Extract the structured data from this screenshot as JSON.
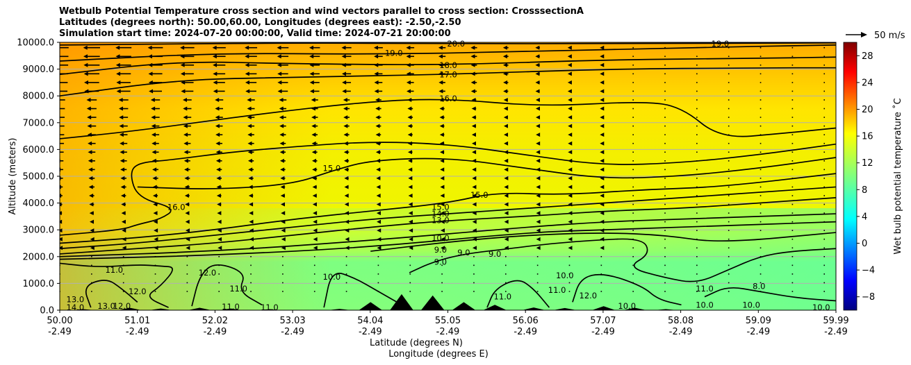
{
  "chart_data": {
    "type": "heatmap",
    "title_lines": [
      "Wetbulb Potential Temperature cross section and wind vectors parallel to cross section: CrosssectionA",
      "Latitudes (degrees north): 50.00,60.00, Longitudes (degrees east): -2.50,-2.50",
      "Simulation start time: 2024-07-20 00:00:00, Valid time: 2024-07-21 20:00:00"
    ],
    "xlabel_lat": "Latitude (degrees N)",
    "xlabel_lon": "Longitude (degrees E)",
    "ylabel": "Altitude (meters)",
    "x_ticks": [
      {
        "lat": "50.00",
        "lon": "-2.49"
      },
      {
        "lat": "51.01",
        "lon": "-2.49"
      },
      {
        "lat": "52.02",
        "lon": "-2.49"
      },
      {
        "lat": "53.03",
        "lon": "-2.49"
      },
      {
        "lat": "54.04",
        "lon": "-2.49"
      },
      {
        "lat": "55.05",
        "lon": "-2.49"
      },
      {
        "lat": "56.06",
        "lon": "-2.49"
      },
      {
        "lat": "57.07",
        "lon": "-2.49"
      },
      {
        "lat": "58.08",
        "lon": "-2.49"
      },
      {
        "lat": "59.09",
        "lon": "-2.49"
      },
      {
        "lat": "59.99",
        "lon": "-2.49"
      }
    ],
    "x_range": [
      50.0,
      59.99
    ],
    "y_ticks": [
      "0.0",
      "1000.0",
      "2000.0",
      "3000.0",
      "4000.0",
      "5000.0",
      "6000.0",
      "7000.0",
      "8000.0",
      "9000.0",
      "10000.0"
    ],
    "ylim": [
      0,
      10000
    ],
    "grid": "horizontal lines",
    "colorbar": {
      "label": "Wet bulb potential temperature $^\\circ$C",
      "label_text": "Wet bulb potential temperature ˚C",
      "ticks": [
        "−8",
        "−4",
        "0",
        "4",
        "8",
        "12",
        "16",
        "20",
        "24",
        "28"
      ],
      "range": [
        -10,
        30
      ],
      "colormap": "jet"
    },
    "wind_key": {
      "label": "50 m/s"
    },
    "contour_labels": [
      {
        "text": "20.0",
        "lat": 55.1,
        "z": 9950
      },
      {
        "text": "19.0",
        "lat": 54.3,
        "z": 9600
      },
      {
        "text": "19.0",
        "lat": 58.5,
        "z": 9950
      },
      {
        "text": "18.0",
        "lat": 55.0,
        "z": 9150
      },
      {
        "text": "17.0",
        "lat": 55.0,
        "z": 8800
      },
      {
        "text": "16.0",
        "lat": 55.0,
        "z": 7900
      },
      {
        "text": "15.0",
        "lat": 53.5,
        "z": 5300
      },
      {
        "text": "16.0",
        "lat": 51.5,
        "z": 3850
      },
      {
        "text": "15.0",
        "lat": 55.4,
        "z": 4300
      },
      {
        "text": "15.0",
        "lat": 54.9,
        "z": 3850
      },
      {
        "text": "14.0",
        "lat": 54.9,
        "z": 3600
      },
      {
        "text": "13.0",
        "lat": 54.9,
        "z": 3350
      },
      {
        "text": "10.0",
        "lat": 54.9,
        "z": 2700
      },
      {
        "text": "9.0",
        "lat": 54.9,
        "z": 2250
      },
      {
        "text": "9.0",
        "lat": 55.2,
        "z": 2150
      },
      {
        "text": "9.0",
        "lat": 54.9,
        "z": 1800
      },
      {
        "text": "9.0",
        "lat": 55.6,
        "z": 2100
      },
      {
        "text": "11.0",
        "lat": 50.7,
        "z": 1500
      },
      {
        "text": "12.0",
        "lat": 51.9,
        "z": 1400
      },
      {
        "text": "12.0",
        "lat": 51.0,
        "z": 700
      },
      {
        "text": "11.0",
        "lat": 52.3,
        "z": 800
      },
      {
        "text": "10.0",
        "lat": 53.5,
        "z": 1250
      },
      {
        "text": "11.0",
        "lat": 56.4,
        "z": 750
      },
      {
        "text": "10.0",
        "lat": 56.5,
        "z": 1300
      },
      {
        "text": "12.0",
        "lat": 56.8,
        "z": 550
      },
      {
        "text": "11.0",
        "lat": 58.3,
        "z": 800
      },
      {
        "text": "8.0",
        "lat": 59.0,
        "z": 900
      },
      {
        "text": "13.0",
        "lat": 50.2,
        "z": 400
      },
      {
        "text": "14.0",
        "lat": 50.2,
        "z": 100
      },
      {
        "text": "13.0",
        "lat": 50.6,
        "z": 150
      },
      {
        "text": "12.0",
        "lat": 50.8,
        "z": 150
      },
      {
        "text": "11.0",
        "lat": 52.2,
        "z": 130
      },
      {
        "text": "11.0",
        "lat": 52.7,
        "z": 100
      },
      {
        "text": "11.0",
        "lat": 55.7,
        "z": 500
      },
      {
        "text": "10.0",
        "lat": 57.3,
        "z": 150
      },
      {
        "text": "10.0",
        "lat": 58.3,
        "z": 200
      },
      {
        "text": "10.0",
        "lat": 58.9,
        "z": 200
      },
      {
        "text": "10.0",
        "lat": 59.8,
        "z": 100
      }
    ],
    "contours": [
      {
        "level": 20.0,
        "points": [
          [
            50.0,
            9900
          ],
          [
            53.0,
            9980
          ],
          [
            55.0,
            9950
          ],
          [
            57.0,
            9950
          ],
          [
            59.99,
            9980
          ]
        ]
      },
      {
        "level": 19.0,
        "points": [
          [
            50.0,
            9300
          ],
          [
            52.0,
            9600
          ],
          [
            54.0,
            9550
          ],
          [
            56.0,
            9650
          ],
          [
            58.0,
            9800
          ],
          [
            59.99,
            9900
          ]
        ]
      },
      {
        "level": 18.0,
        "points": [
          [
            50.0,
            8800
          ],
          [
            51.5,
            9300
          ],
          [
            53.0,
            9200
          ],
          [
            55.0,
            9150
          ],
          [
            57.0,
            9350
          ],
          [
            59.0,
            9400
          ],
          [
            59.99,
            9450
          ]
        ]
      },
      {
        "level": 17.0,
        "points": [
          [
            50.0,
            8000
          ],
          [
            51.5,
            8600
          ],
          [
            53.0,
            8700
          ],
          [
            55.0,
            8800
          ],
          [
            57.0,
            9000
          ],
          [
            59.0,
            9050
          ],
          [
            59.99,
            9050
          ]
        ]
      },
      {
        "level": 16.0,
        "points": [
          [
            50.0,
            6400
          ],
          [
            51.0,
            6700
          ],
          [
            52.5,
            7300
          ],
          [
            54.0,
            7800
          ],
          [
            55.0,
            7900
          ],
          [
            56.2,
            7600
          ],
          [
            57.5,
            7800
          ],
          [
            58.0,
            7600
          ],
          [
            58.5,
            6400
          ],
          [
            59.3,
            6600
          ],
          [
            59.99,
            6800
          ]
        ]
      },
      {
        "level": 16.0,
        "points": [
          [
            50.0,
            2800
          ],
          [
            50.8,
            3000
          ],
          [
            51.0,
            3200
          ],
          [
            51.3,
            3400
          ],
          [
            51.5,
            3800
          ],
          [
            51.0,
            4200
          ],
          [
            50.9,
            5100
          ],
          [
            51.0,
            5500
          ],
          [
            51.4,
            5600
          ],
          [
            52.2,
            5900
          ],
          [
            53.0,
            6100
          ],
          [
            54.0,
            6300
          ],
          [
            55.0,
            6200
          ],
          [
            56.0,
            5800
          ],
          [
            57.0,
            5400
          ],
          [
            58.0,
            5500
          ],
          [
            59.0,
            5800
          ],
          [
            59.99,
            6200
          ]
        ]
      },
      {
        "level": 15.0,
        "points": [
          [
            51.0,
            4600
          ],
          [
            52.0,
            4500
          ],
          [
            53.0,
            4700
          ],
          [
            53.5,
            5200
          ],
          [
            54.0,
            5600
          ],
          [
            55.0,
            5700
          ],
          [
            56.0,
            5300
          ],
          [
            57.0,
            4900
          ],
          [
            58.0,
            5000
          ],
          [
            59.0,
            5300
          ],
          [
            59.99,
            5700
          ]
        ]
      },
      {
        "level": 15.0,
        "points": [
          [
            50.0,
            2500
          ],
          [
            51.0,
            2700
          ],
          [
            52.0,
            3000
          ],
          [
            53.0,
            3400
          ],
          [
            54.0,
            3700
          ],
          [
            55.0,
            4000
          ],
          [
            55.6,
            4400
          ],
          [
            56.5,
            4300
          ],
          [
            57.5,
            4500
          ],
          [
            58.5,
            4600
          ],
          [
            59.99,
            5100
          ]
        ]
      },
      {
        "level": 14.0,
        "points": [
          [
            50.0,
            2300
          ],
          [
            51.0,
            2500
          ],
          [
            52.0,
            2800
          ],
          [
            53.0,
            3100
          ],
          [
            54.0,
            3400
          ],
          [
            55.0,
            3600
          ],
          [
            56.0,
            3800
          ],
          [
            57.0,
            4000
          ],
          [
            58.0,
            4200
          ],
          [
            59.0,
            4400
          ],
          [
            59.99,
            4600
          ]
        ]
      },
      {
        "level": 13.0,
        "points": [
          [
            50.0,
            2100
          ],
          [
            51.0,
            2300
          ],
          [
            52.0,
            2500
          ],
          [
            53.0,
            2800
          ],
          [
            54.0,
            3100
          ],
          [
            55.0,
            3350
          ],
          [
            56.0,
            3500
          ],
          [
            57.0,
            3700
          ],
          [
            58.0,
            3800
          ],
          [
            59.0,
            4000
          ],
          [
            59.99,
            4200
          ]
        ]
      },
      {
        "level": 12.0,
        "points": [
          [
            50.0,
            2000
          ],
          [
            52.0,
            2200
          ],
          [
            54.0,
            2600
          ],
          [
            56.0,
            3100
          ],
          [
            57.0,
            3300
          ],
          [
            58.0,
            3400
          ],
          [
            59.99,
            3600
          ]
        ]
      },
      {
        "level": 11.0,
        "points": [
          [
            50.0,
            1900
          ],
          [
            52.0,
            2050
          ],
          [
            54.0,
            2350
          ],
          [
            56.0,
            2900
          ],
          [
            57.0,
            3000
          ],
          [
            58.0,
            3100
          ],
          [
            59.99,
            3300
          ]
        ]
      },
      {
        "level": 10.0,
        "points": [
          [
            54.0,
            2200
          ],
          [
            55.0,
            2550
          ],
          [
            56.0,
            2800
          ],
          [
            57.0,
            2900
          ],
          [
            57.8,
            2800
          ],
          [
            58.5,
            2500
          ],
          [
            59.99,
            2900
          ]
        ]
      },
      {
        "level": 9.0,
        "points": [
          [
            54.5,
            1400
          ],
          [
            54.8,
            1800
          ],
          [
            55.2,
            2100
          ],
          [
            55.8,
            2300
          ],
          [
            56.2,
            2450
          ],
          [
            56.8,
            2600
          ],
          [
            57.5,
            2700
          ],
          [
            57.6,
            2100
          ],
          [
            57.3,
            1600
          ],
          [
            57.8,
            1200
          ],
          [
            58.2,
            1000
          ],
          [
            58.6,
            1500
          ],
          [
            59.0,
            2000
          ],
          [
            59.4,
            2200
          ],
          [
            59.99,
            2300
          ]
        ]
      },
      {
        "level": 11.0,
        "points": [
          [
            50.0,
            1750
          ],
          [
            50.5,
            1600
          ],
          [
            51.0,
            1700
          ],
          [
            51.3,
            1650
          ],
          [
            51.5,
            1600
          ],
          [
            51.3,
            900
          ],
          [
            51.1,
            500
          ],
          [
            51.4,
            100
          ]
        ]
      },
      {
        "level": 12.0,
        "points": [
          [
            50.4,
            100
          ],
          [
            50.3,
            900
          ],
          [
            50.6,
            1200
          ],
          [
            50.8,
            800
          ],
          [
            51.0,
            300
          ]
        ]
      },
      {
        "level": 11.0,
        "points": [
          [
            51.7,
            150
          ],
          [
            51.8,
            1300
          ],
          [
            52.0,
            1800
          ],
          [
            52.4,
            1400
          ],
          [
            52.3,
            700
          ],
          [
            52.6,
            200
          ]
        ]
      },
      {
        "level": 10.0,
        "points": [
          [
            53.4,
            100
          ],
          [
            53.5,
            1500
          ],
          [
            53.8,
            1200
          ],
          [
            54.1,
            700
          ],
          [
            54.4,
            200
          ]
        ]
      },
      {
        "level": 11.0,
        "points": [
          [
            55.5,
            100
          ],
          [
            55.6,
            800
          ],
          [
            55.9,
            1200
          ],
          [
            56.1,
            800
          ],
          [
            56.3,
            100
          ]
        ]
      },
      {
        "level": 10.0,
        "points": [
          [
            56.6,
            300
          ],
          [
            56.7,
            1200
          ],
          [
            57.0,
            1400
          ],
          [
            57.5,
            900
          ],
          [
            57.7,
            400
          ],
          [
            58.0,
            200
          ]
        ]
      },
      {
        "level": 10.0,
        "points": [
          [
            58.3,
            500
          ],
          [
            58.6,
            900
          ],
          [
            59.0,
            700
          ],
          [
            59.5,
            450
          ],
          [
            59.99,
            350
          ]
        ]
      }
    ],
    "terrain_peaks": [
      {
        "lat": 50.3,
        "z": 40
      },
      {
        "lat": 50.9,
        "z": 90
      },
      {
        "lat": 51.3,
        "z": 60
      },
      {
        "lat": 51.8,
        "z": 90
      },
      {
        "lat": 52.2,
        "z": 60
      },
      {
        "lat": 52.7,
        "z": 40
      },
      {
        "lat": 53.6,
        "z": 50
      },
      {
        "lat": 54.0,
        "z": 300
      },
      {
        "lat": 54.4,
        "z": 600
      },
      {
        "lat": 54.8,
        "z": 550
      },
      {
        "lat": 55.2,
        "z": 300
      },
      {
        "lat": 55.6,
        "z": 200
      },
      {
        "lat": 56.1,
        "z": 100
      },
      {
        "lat": 56.5,
        "z": 80
      },
      {
        "lat": 57.0,
        "z": 150
      },
      {
        "lat": 57.4,
        "z": 90
      },
      {
        "lat": 57.8,
        "z": 40
      }
    ],
    "wind_vectors_note": "wind vectors parallel to cross section: strong northward-to-southward (leftward) flow aloft, weakening toward the north"
  }
}
